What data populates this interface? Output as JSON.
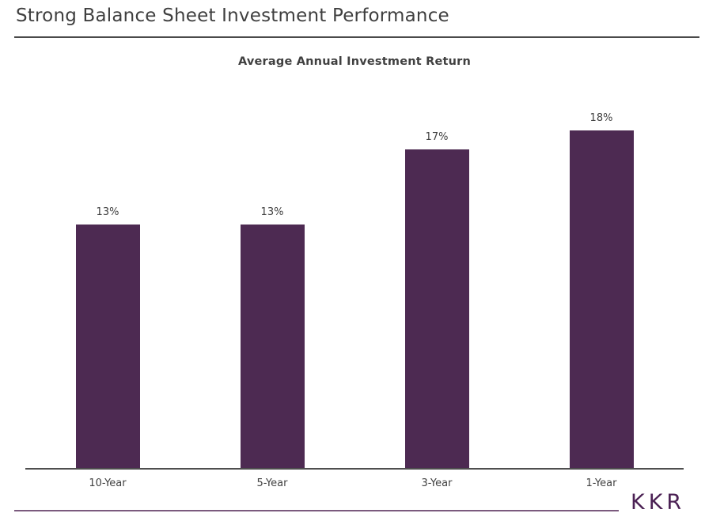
{
  "page": {
    "title": "Strong Balance Sheet Investment Performance"
  },
  "chart_data": {
    "type": "bar",
    "title": "Average Annual Investment Return",
    "categories": [
      "10-Year",
      "5-Year",
      "3-Year",
      "1-Year"
    ],
    "values": [
      13,
      13,
      17,
      18
    ],
    "value_labels": [
      "13%",
      "13%",
      "17%",
      "18%"
    ],
    "unit": "percent",
    "ylim": [
      0,
      20
    ],
    "grid": false,
    "legend": "none",
    "y_axis_shown": false,
    "bar_color": "#4d2a52",
    "axis_line_color": "#4f4f4f",
    "label_color": "#404040"
  },
  "footer": {
    "logo_text": "KKR",
    "logo_color": "#4b2154",
    "rule_color": "#7b5a7e"
  }
}
